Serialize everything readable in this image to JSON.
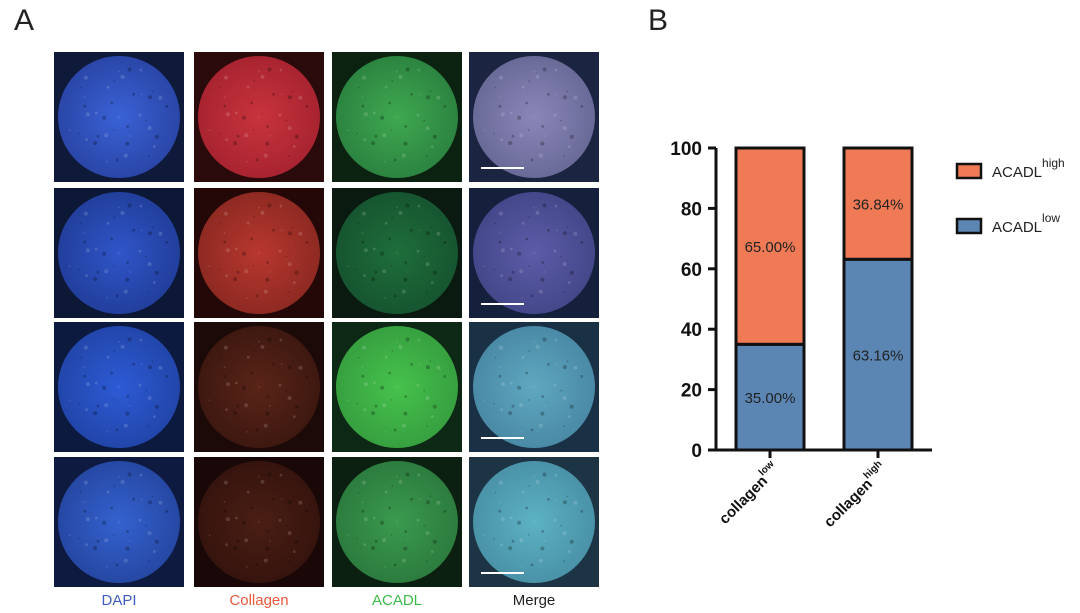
{
  "panel_a": {
    "letter": "A",
    "columns": [
      {
        "label": "DAPI",
        "color": "#3d5fc4"
      },
      {
        "label": "Collagen",
        "color": "#e8583a"
      },
      {
        "label": "ACADL",
        "color": "#3fb94a"
      },
      {
        "label": "Merge",
        "color": "#222222"
      }
    ],
    "rows": 4
  },
  "panel_b": {
    "letter": "B",
    "chart_data": {
      "type": "bar",
      "stacked": true,
      "ylim": [
        0,
        100
      ],
      "yticks": [
        "0",
        "20",
        "40",
        "60",
        "80",
        "100"
      ],
      "categories": [
        {
          "main": "collagen",
          "sup": "low"
        },
        {
          "main": "collagen",
          "sup": "high"
        }
      ],
      "series": [
        {
          "name": "ACADL",
          "sup": "low",
          "color": "#5b86b4",
          "values": [
            35.0,
            63.16
          ],
          "labels": [
            "35.00%",
            "63.16%"
          ]
        },
        {
          "name": "ACADL",
          "sup": "high",
          "color": "#f07a56",
          "values": [
            65.0,
            36.84
          ],
          "labels": [
            "65.00%",
            "36.84%"
          ]
        }
      ],
      "legend_placement": "right",
      "grid": false
    }
  }
}
